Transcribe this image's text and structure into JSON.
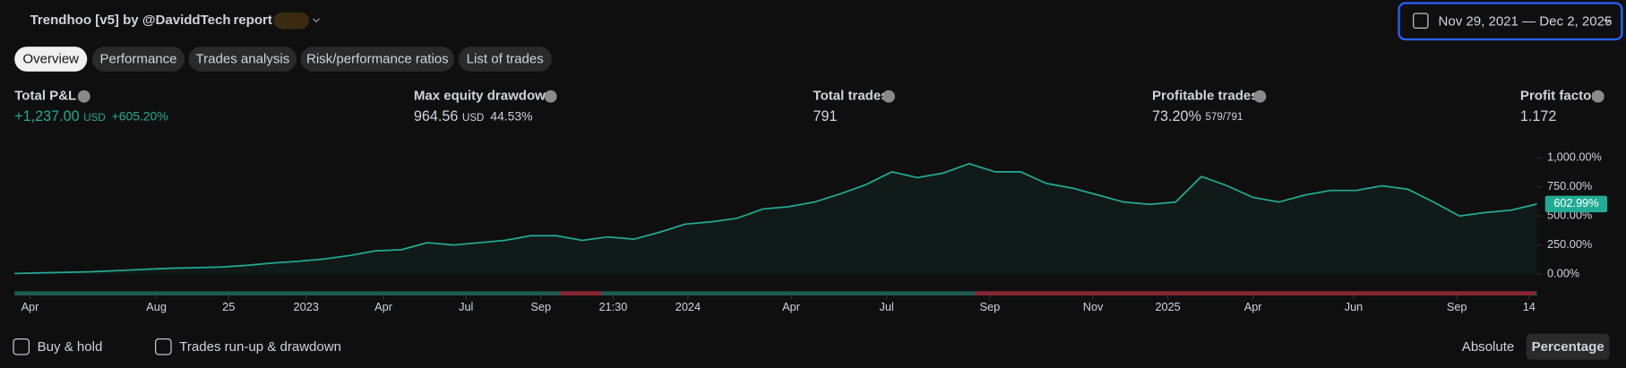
{
  "header": {
    "title": "Trendhoo [v5] by @DaviddTech",
    "report": "report",
    "date_range": "Nov 29, 2021 — Dec 2, 2025"
  },
  "tabs": [
    "Overview",
    "Performance",
    "Trades analysis",
    "Risk/performance ratios",
    "List of trades"
  ],
  "active_tab": 0,
  "stats": [
    {
      "label": "Total P&L",
      "value": "+1,237.00",
      "unit": "USD",
      "extra": "+605.20%"
    },
    {
      "label": "Max equity drawdown",
      "value": "964.56",
      "unit": "USD",
      "extra": "44.53%"
    },
    {
      "label": "Total trades",
      "value": "791"
    },
    {
      "label": "Profitable trades",
      "value": "73.20%",
      "extra": "579/791"
    },
    {
      "label": "Profit factor",
      "value": "1.172"
    }
  ],
  "chart_data": {
    "type": "area",
    "color": "#22ab94",
    "values": [
      5,
      10,
      15,
      20,
      30,
      40,
      50,
      55,
      60,
      75,
      95,
      110,
      130,
      160,
      200,
      210,
      270,
      250,
      270,
      290,
      330,
      330,
      290,
      320,
      300,
      360,
      430,
      450,
      480,
      560,
      580,
      620,
      690,
      770,
      880,
      830,
      870,
      950,
      880,
      880,
      780,
      740,
      680,
      620,
      600,
      620,
      840,
      760,
      660,
      620,
      680,
      720,
      720,
      760,
      730,
      620,
      500,
      530,
      550,
      603
    ],
    "xlim": [
      0,
      59
    ],
    "xticks": [
      {
        "value": 0.6,
        "label": "Apr"
      },
      {
        "value": 5.5,
        "label": "Aug"
      },
      {
        "value": 8.3,
        "label": "25"
      },
      {
        "value": 11.3,
        "label": "2023"
      },
      {
        "value": 14.3,
        "label": "Apr"
      },
      {
        "value": 17.5,
        "label": "Jul"
      },
      {
        "value": 20.4,
        "label": "Sep"
      },
      {
        "value": 23.2,
        "label": "21:30"
      },
      {
        "value": 26.1,
        "label": "2024"
      },
      {
        "value": 30.1,
        "label": "Apr"
      },
      {
        "value": 33.8,
        "label": "Jul"
      },
      {
        "value": 37.8,
        "label": "Sep"
      },
      {
        "value": 41.8,
        "label": "Nov"
      },
      {
        "value": 44.7,
        "label": "2025"
      },
      {
        "value": 48.0,
        "label": "Apr"
      },
      {
        "value": 51.9,
        "label": "Jun"
      },
      {
        "value": 55.9,
        "label": "Sep"
      },
      {
        "value": 58.7,
        "label": "14"
      }
    ],
    "ylim": [
      -50,
      1110
    ],
    "yticks": [
      {
        "value": 0,
        "label": "0.00%"
      },
      {
        "value": 250,
        "label": "250.00%"
      },
      {
        "value": 500,
        "label": "500.00%"
      },
      {
        "value": 750,
        "label": "750.00%"
      },
      {
        "value": 1000,
        "label": "1,000.00%"
      }
    ],
    "current_value": 602.99,
    "current_label": "602.99%"
  },
  "footer": {
    "checkboxes": [
      "Buy & hold",
      "Trades run-up & drawdown"
    ],
    "toggles": [
      "Absolute",
      "Percentage"
    ],
    "active_toggle": 1
  }
}
